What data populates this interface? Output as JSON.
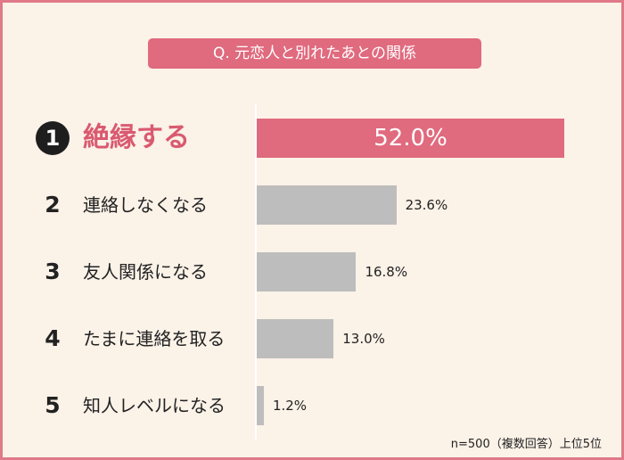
{
  "question": "Q. 元恋人と別れたあとの関係",
  "note": "n=500（複数回答）上位5位",
  "colors": {
    "accent": "#e06a7e",
    "bar": "#bdbdbd",
    "background": "#fbf2e8",
    "border": "#e07a88"
  },
  "chart_data": {
    "type": "bar",
    "orientation": "horizontal",
    "unit": "%",
    "xlim": [
      0,
      60
    ],
    "categories": [
      "絶縁する",
      "連絡しなくなる",
      "友人関係になる",
      "たまに連絡を取る",
      "知人レベルになる"
    ],
    "ranks": [
      "1",
      "2",
      "3",
      "4",
      "5"
    ],
    "values": [
      52.0,
      23.6,
      16.8,
      13.0,
      1.2
    ],
    "value_labels": [
      "52.0%",
      "23.6%",
      "16.8%",
      "13.0%",
      "1.2%"
    ]
  }
}
